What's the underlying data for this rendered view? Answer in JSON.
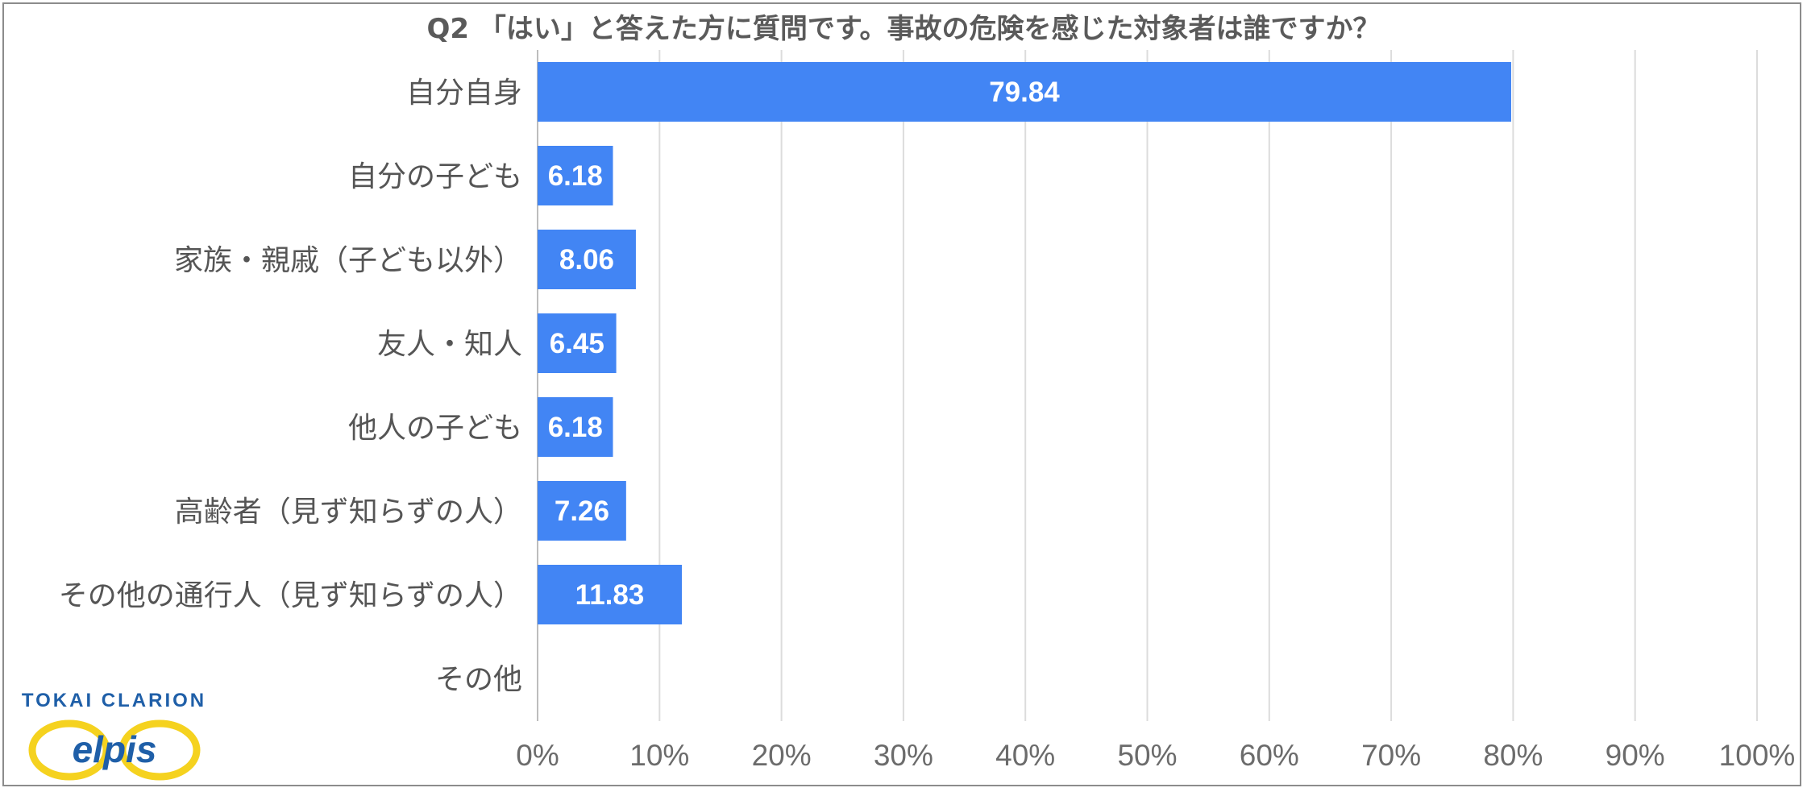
{
  "chart_data": {
    "type": "bar",
    "orientation": "horizontal",
    "title": "Q2 「はい」と答えた方に質問です。事故の危険を感じた対象者は誰ですか？",
    "categories": [
      "自分自身",
      "自分の子ども",
      "家族・親戚（子ども以外）",
      "友人・知人",
      "他人の子ども",
      "高齢者（見ず知らずの人）",
      "その他の通行人（見ず知らずの人）",
      "その他"
    ],
    "values": [
      79.84,
      6.18,
      8.06,
      6.45,
      6.18,
      7.26,
      11.83,
      0
    ],
    "data_labels": [
      "79.84",
      "6.18",
      "8.06",
      "6.45",
      "6.18",
      "7.26",
      "11.83",
      ""
    ],
    "xlim": [
      0,
      100
    ],
    "x_ticks": [
      "0%",
      "10%",
      "20%",
      "30%",
      "40%",
      "50%",
      "60%",
      "70%",
      "80%",
      "90%",
      "100%"
    ],
    "grid": true,
    "colors": {
      "bar": "#4285f4",
      "grid": "#dcdcdc",
      "frame": "#8c8c8c",
      "text": "#555555"
    }
  },
  "logo": {
    "company": "TOKAI CLARION",
    "mark": "elpis",
    "colors": {
      "ring": "#f5d21f",
      "text": "#1f5fa8"
    }
  }
}
